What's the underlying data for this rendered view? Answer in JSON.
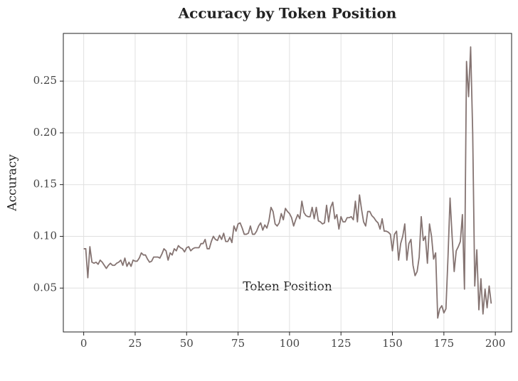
{
  "chart_data": {
    "type": "line",
    "title": "Accuracy by Token Position",
    "xlabel": "Token Position",
    "ylabel": "Accuracy",
    "x": [
      0,
      1,
      2,
      3,
      4,
      5,
      6,
      7,
      8,
      9,
      10,
      11,
      12,
      13,
      14,
      15,
      16,
      17,
      18,
      19,
      20,
      21,
      22,
      23,
      24,
      25,
      26,
      27,
      28,
      29,
      30,
      31,
      32,
      33,
      34,
      35,
      36,
      37,
      38,
      39,
      40,
      41,
      42,
      43,
      44,
      45,
      46,
      47,
      48,
      49,
      50,
      51,
      52,
      53,
      54,
      55,
      56,
      57,
      58,
      59,
      60,
      61,
      62,
      63,
      64,
      65,
      66,
      67,
      68,
      69,
      70,
      71,
      72,
      73,
      74,
      75,
      76,
      77,
      78,
      79,
      80,
      81,
      82,
      83,
      84,
      85,
      86,
      87,
      88,
      89,
      90,
      91,
      92,
      93,
      94,
      95,
      96,
      97,
      98,
      99,
      100,
      101,
      102,
      103,
      104,
      105,
      106,
      107,
      108,
      109,
      110,
      111,
      112,
      113,
      114,
      115,
      116,
      117,
      118,
      119,
      120,
      121,
      122,
      123,
      124,
      125,
      126,
      127,
      128,
      129,
      130,
      131,
      132,
      133,
      134,
      135,
      136,
      137,
      138,
      139,
      140,
      141,
      142,
      143,
      144,
      145,
      146,
      147,
      148,
      149,
      150,
      151,
      152,
      153,
      154,
      155,
      156,
      157,
      158,
      159,
      160,
      161,
      162,
      163,
      164,
      165,
      166,
      167,
      168,
      169,
      170,
      171,
      172,
      173,
      174,
      175,
      176,
      177,
      178,
      179,
      180,
      181,
      182,
      183,
      184,
      185,
      186,
      187,
      188,
      189,
      190,
      191,
      192,
      193,
      194,
      195,
      196,
      197,
      198
    ],
    "series": [
      {
        "name": "Accuracy",
        "color": "#857472",
        "values": [
          0.088,
          0.088,
          0.06,
          0.09,
          0.075,
          0.074,
          0.075,
          0.073,
          0.077,
          0.075,
          0.072,
          0.069,
          0.072,
          0.074,
          0.072,
          0.072,
          0.074,
          0.075,
          0.077,
          0.072,
          0.079,
          0.071,
          0.075,
          0.071,
          0.077,
          0.076,
          0.076,
          0.079,
          0.084,
          0.082,
          0.082,
          0.078,
          0.075,
          0.076,
          0.08,
          0.08,
          0.08,
          0.079,
          0.083,
          0.088,
          0.086,
          0.077,
          0.084,
          0.082,
          0.088,
          0.086,
          0.091,
          0.089,
          0.088,
          0.085,
          0.089,
          0.09,
          0.086,
          0.088,
          0.089,
          0.089,
          0.089,
          0.093,
          0.093,
          0.097,
          0.088,
          0.088,
          0.095,
          0.1,
          0.097,
          0.096,
          0.101,
          0.097,
          0.103,
          0.095,
          0.095,
          0.099,
          0.094,
          0.11,
          0.105,
          0.112,
          0.113,
          0.108,
          0.102,
          0.102,
          0.103,
          0.11,
          0.102,
          0.102,
          0.105,
          0.11,
          0.113,
          0.106,
          0.111,
          0.108,
          0.115,
          0.128,
          0.124,
          0.112,
          0.11,
          0.113,
          0.122,
          0.116,
          0.127,
          0.124,
          0.122,
          0.118,
          0.11,
          0.116,
          0.121,
          0.117,
          0.134,
          0.123,
          0.12,
          0.119,
          0.119,
          0.128,
          0.117,
          0.128,
          0.115,
          0.114,
          0.112,
          0.113,
          0.13,
          0.114,
          0.128,
          0.133,
          0.117,
          0.121,
          0.107,
          0.119,
          0.114,
          0.114,
          0.118,
          0.118,
          0.119,
          0.116,
          0.134,
          0.114,
          0.14,
          0.126,
          0.114,
          0.11,
          0.124,
          0.124,
          0.12,
          0.118,
          0.115,
          0.113,
          0.107,
          0.117,
          0.105,
          0.105,
          0.104,
          0.102,
          0.086,
          0.102,
          0.105,
          0.077,
          0.093,
          0.1,
          0.112,
          0.077,
          0.093,
          0.097,
          0.072,
          0.062,
          0.066,
          0.08,
          0.119,
          0.096,
          0.1,
          0.074,
          0.112,
          0.1,
          0.078,
          0.084,
          0.021,
          0.03,
          0.033,
          0.026,
          0.03,
          0.08,
          0.137,
          0.1,
          0.066,
          0.086,
          0.09,
          0.095,
          0.121,
          0.049,
          0.269,
          0.235,
          0.283,
          0.2,
          0.052,
          0.087,
          0.029,
          0.059,
          0.025,
          0.049,
          0.031,
          0.052,
          0.035
        ]
      }
    ],
    "xlim": [
      -9.9,
      207.9
    ],
    "xticks": [
      0,
      25,
      50,
      75,
      100,
      125,
      150,
      175,
      200
    ],
    "ylim": [
      0.0076,
      0.2961
    ],
    "yticks": [
      0.05,
      {
        "value": 0.1,
        "label": "0.10"
      },
      0.15,
      {
        "value": 0.2,
        "label": "0.20"
      },
      0.25
    ],
    "grid": true
  }
}
